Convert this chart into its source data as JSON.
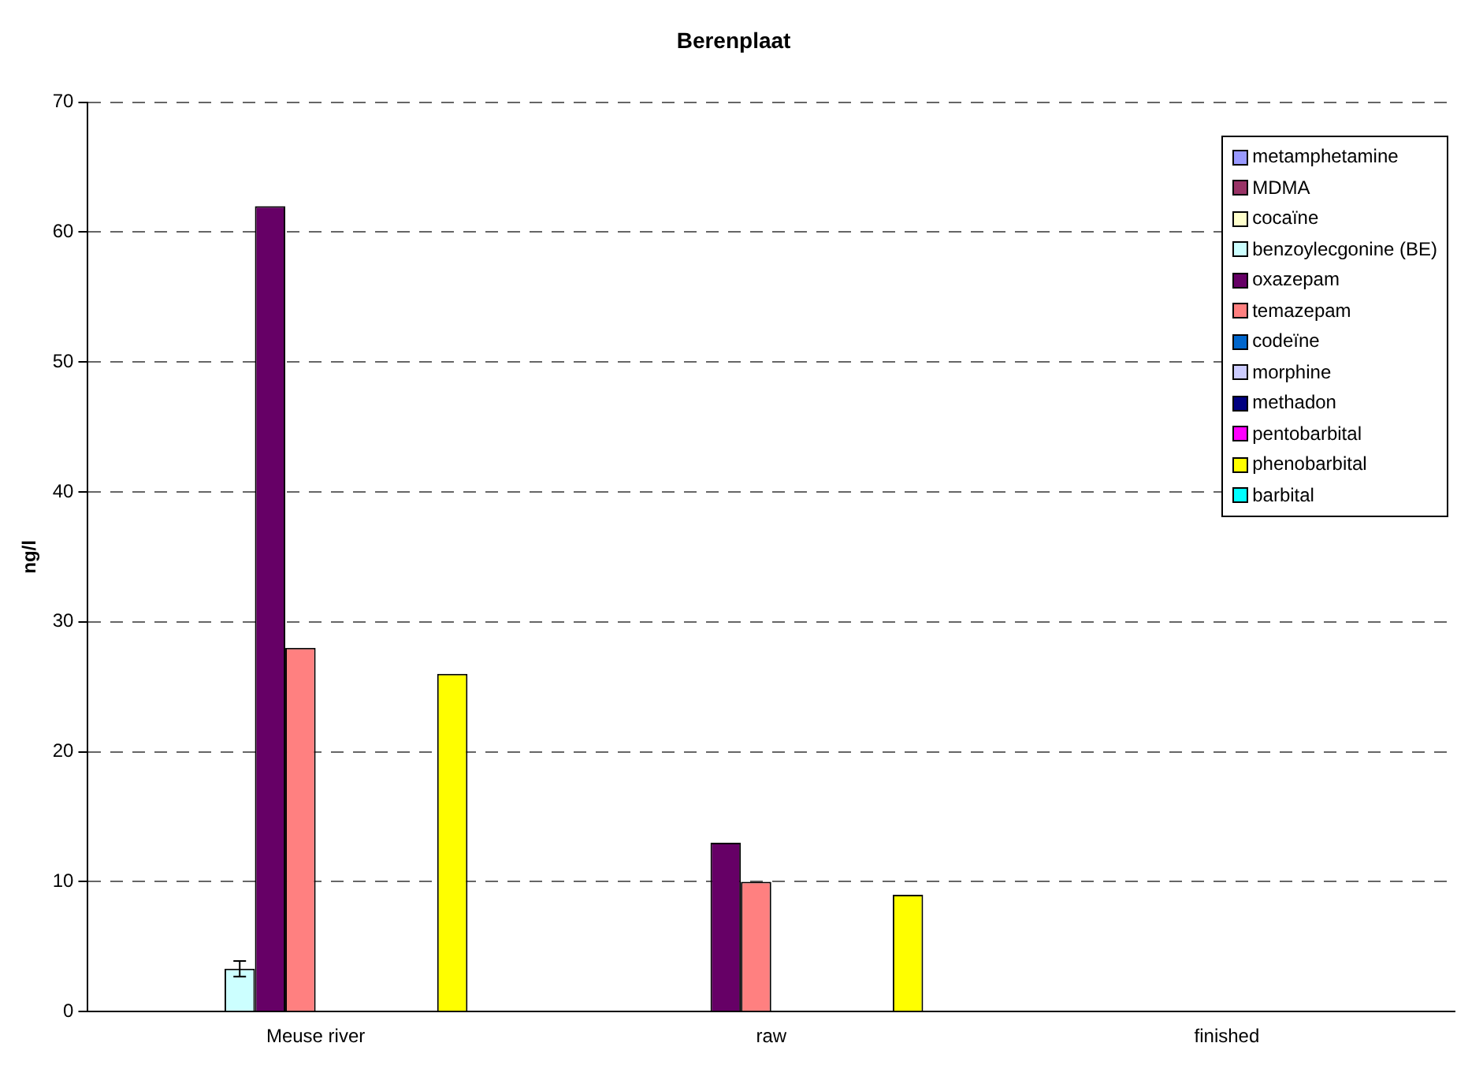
{
  "chart_data": {
    "type": "bar",
    "title": "Berenplaat",
    "ylabel": "ng/l",
    "categories": [
      "Meuse river",
      "raw",
      "finished"
    ],
    "series": [
      {
        "name": "metamphetamine",
        "color": "#9999ff",
        "values": [
          null,
          null,
          null
        ]
      },
      {
        "name": "MDMA",
        "color": "#993366",
        "values": [
          null,
          null,
          null
        ]
      },
      {
        "name": "cocaïne",
        "color": "#ffffcc",
        "values": [
          null,
          null,
          null
        ]
      },
      {
        "name": "benzoylecgonine (BE)",
        "color": "#ccffff",
        "values": [
          3.3,
          null,
          null
        ],
        "errors": [
          0.6,
          null,
          null
        ]
      },
      {
        "name": "oxazepam",
        "color": "#660066",
        "values": [
          62,
          13,
          null
        ]
      },
      {
        "name": "temazepam",
        "color": "#ff8080",
        "values": [
          28,
          10,
          null
        ]
      },
      {
        "name": "codeïne",
        "color": "#0066cc",
        "values": [
          null,
          null,
          null
        ]
      },
      {
        "name": "morphine",
        "color": "#ccccff",
        "values": [
          null,
          null,
          null
        ]
      },
      {
        "name": "methadon",
        "color": "#000080",
        "values": [
          null,
          null,
          null
        ]
      },
      {
        "name": "pentobarbital",
        "color": "#ff00ff",
        "values": [
          null,
          null,
          null
        ]
      },
      {
        "name": "phenobarbital",
        "color": "#ffff00",
        "values": [
          26,
          9,
          null
        ]
      },
      {
        "name": "barbital",
        "color": "#00ffff",
        "values": [
          null,
          null,
          null
        ]
      }
    ],
    "ylim": [
      0,
      70
    ],
    "yticks": [
      0,
      10,
      20,
      30,
      40,
      50,
      60,
      70
    ],
    "grid": "y",
    "legend": "top right"
  }
}
